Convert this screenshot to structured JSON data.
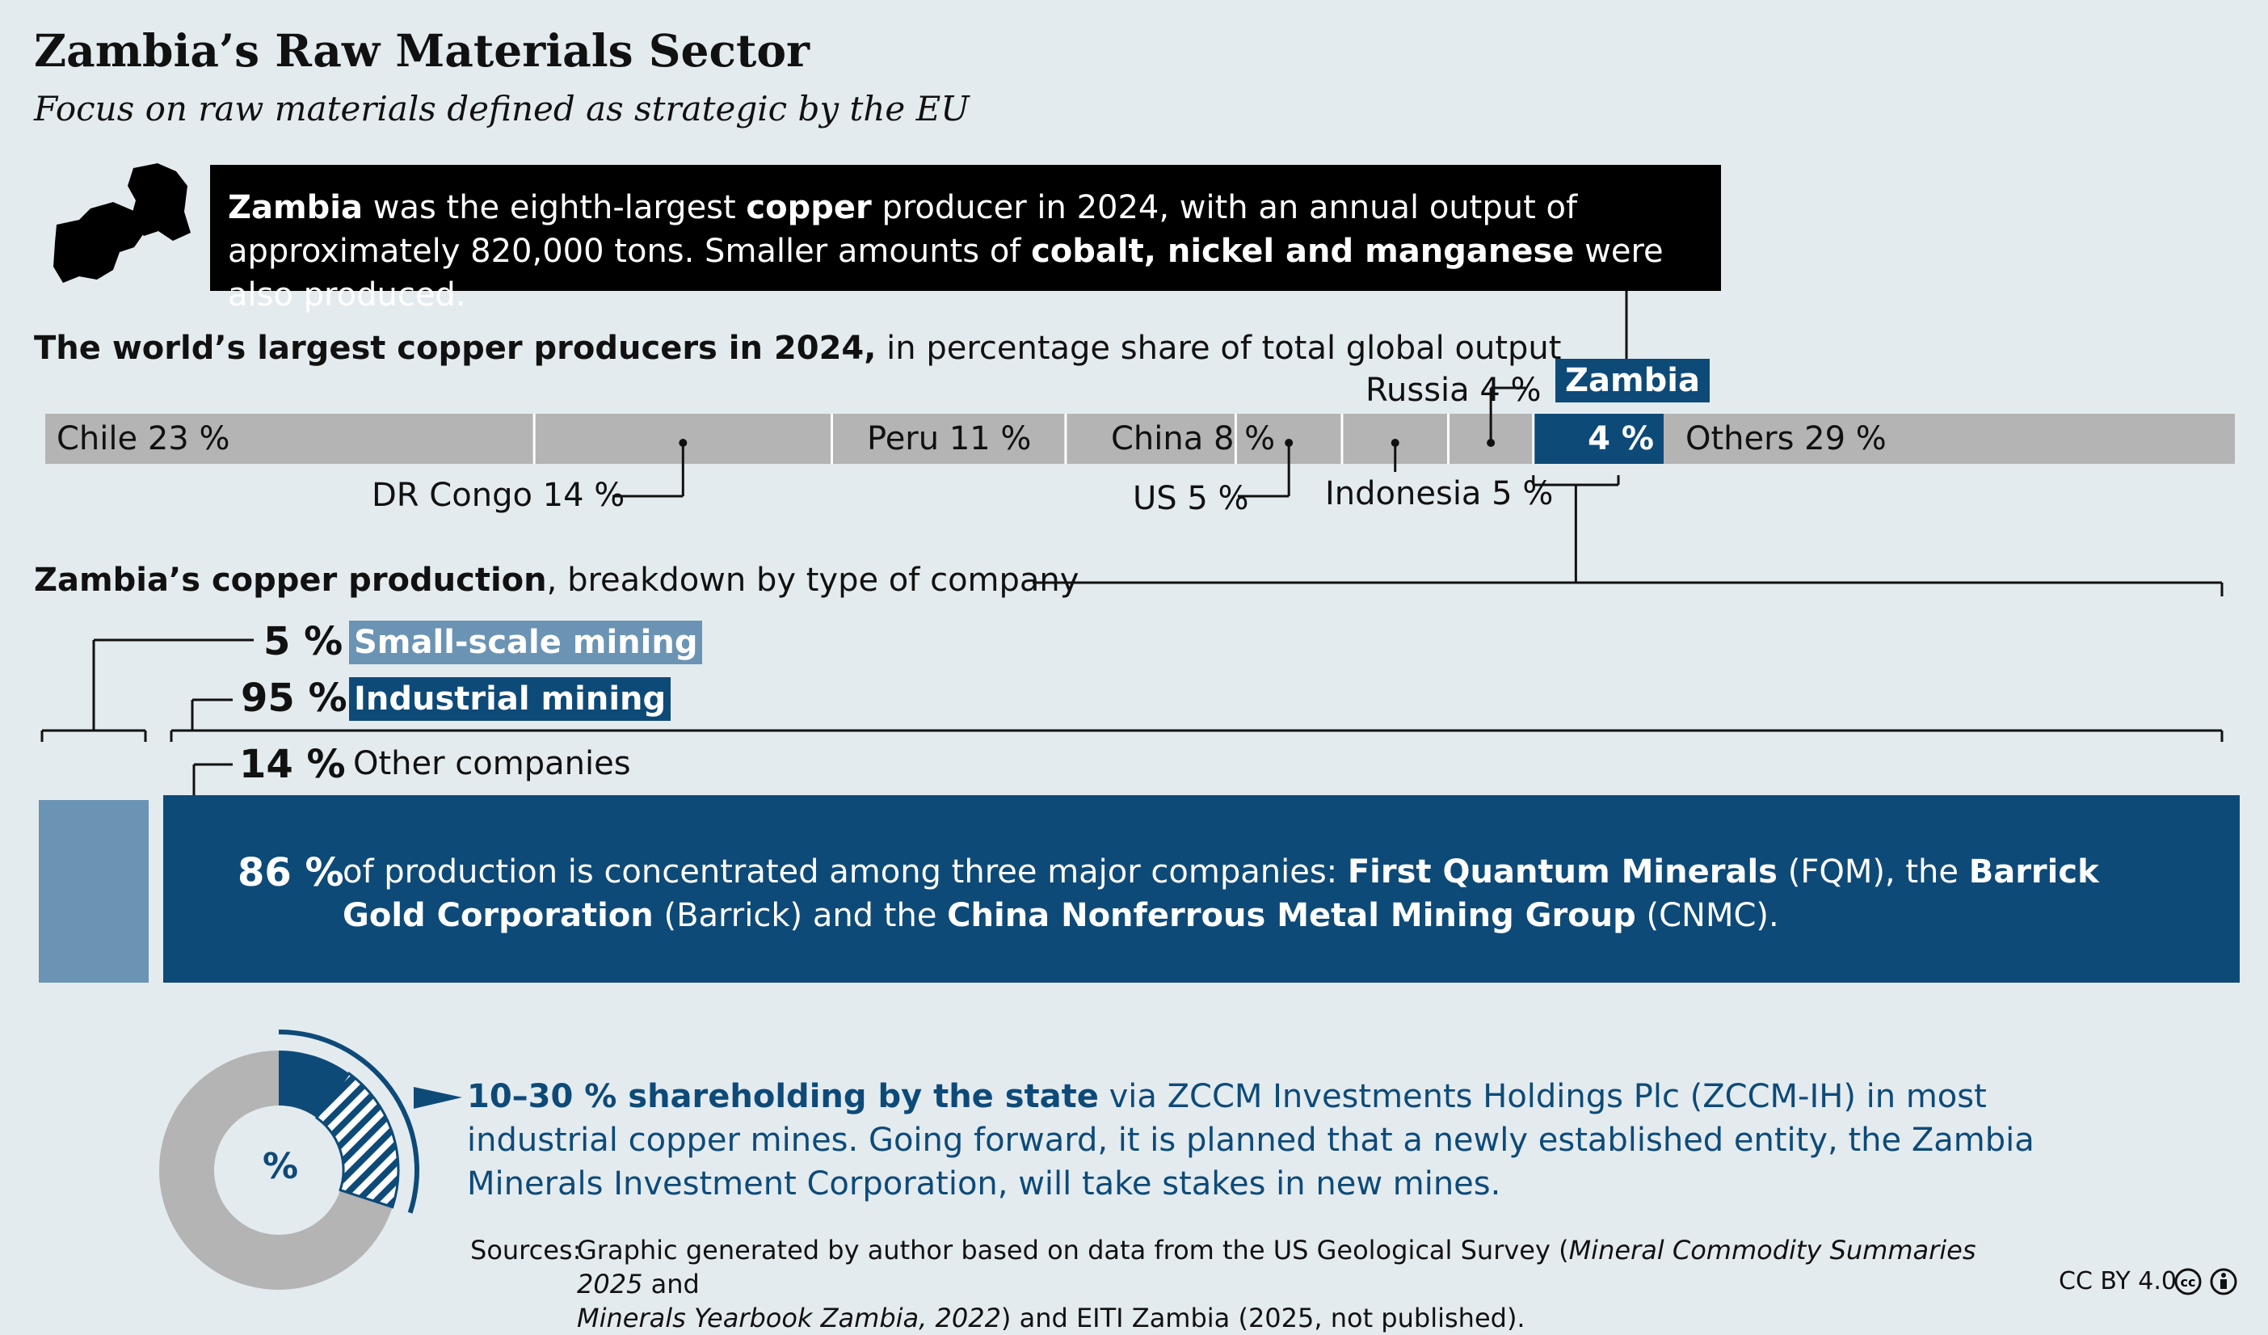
{
  "title": "Zambia’s Raw Materials Sector",
  "subtitle": "Focus on raw materials defined as strategic by the EU",
  "intro": {
    "w1": "Zambia",
    "w2": " was the eighth-largest ",
    "w3": "copper",
    "w4": " producer in 2024, with an annual output of approximately 820,000 tons. Smaller amounts of ",
    "w5": "cobalt, nickel and manganese",
    "w6": " were also produced."
  },
  "section1": {
    "bold": "The world’s largest copper producers in 2024,",
    "rest": " in percentage share of total global output"
  },
  "section2": {
    "bold": "Zambia’s copper production",
    "rest": ", breakdown by type of company"
  },
  "zambia_tag": "Zambia",
  "colors": {
    "dark_blue": "#0e4a78",
    "light_blue": "#6b93b4",
    "grey": "#b4b4b4",
    "background": "#e3ebef"
  },
  "chart_data": [
    {
      "type": "bar",
      "title": "The world’s largest copper producers in 2024, in percentage share of total global output",
      "unit": "%",
      "categories": [
        "Chile",
        "DR Congo",
        "Peru",
        "China",
        "US",
        "Indonesia",
        "Russia",
        "Zambia",
        "Others"
      ],
      "values": [
        23,
        14,
        11,
        8,
        5,
        5,
        4,
        4,
        29
      ],
      "labels": [
        "Chile 23 %",
        "DR Congo 14 %",
        "Peru 11 %",
        "China 8 %",
        "US 5 %",
        "Indonesia 5 %",
        "Russia 4 %",
        "4 %",
        "Others 29 %"
      ],
      "highlight": "Zambia"
    },
    {
      "type": "bar",
      "title": "Zambia’s copper production, breakdown by type of company",
      "categories": [
        "Small-scale mining",
        "Industrial mining"
      ],
      "values": [
        5,
        95
      ],
      "labels": [
        "5 %",
        "95 %"
      ],
      "industrial_breakdown": {
        "categories": [
          "Other companies",
          "Three major companies"
        ],
        "values": [
          14,
          86
        ],
        "labels": [
          "14 %",
          "86 %"
        ]
      }
    },
    {
      "type": "pie",
      "center_label": "%",
      "state_share_range": [
        10,
        30
      ],
      "description_bold": "10–30 % shareholding by the state",
      "description_rest": " via ZCCM Investments Holdings Plc (ZCCM-IH) in most industrial copper mines. Going forward, it is planned that a newly established entity, the Zambia Minerals Investment Corporation, will take stakes in new mines."
    }
  ],
  "small_label": "Small-scale mining",
  "industrial_label": "Industrial mining",
  "other_companies_label": "Other companies",
  "concentration": {
    "pct": "86 %",
    "t1": "of production is concentrated among three major companies: ",
    "b1": "First Quantum Minerals",
    "t2": " (FQM), the ",
    "b2": "Barrick Gold Corporation",
    "t3": " (Barrick) and the ",
    "b3": "China Nonferrous Metal Mining Group",
    "t4": " (CNMC)."
  },
  "sources": {
    "label": "Sources:",
    "t1": "Graphic generated by author based on data from the US Geological Survey (",
    "i1": "Mineral Commodity Summaries 2025",
    "t2": " and",
    "i2": "Minerals Yearbook Zambia, 2022",
    "t3": ") and EITI Zambia (2025, not published)."
  },
  "license": "CC BY 4.0"
}
